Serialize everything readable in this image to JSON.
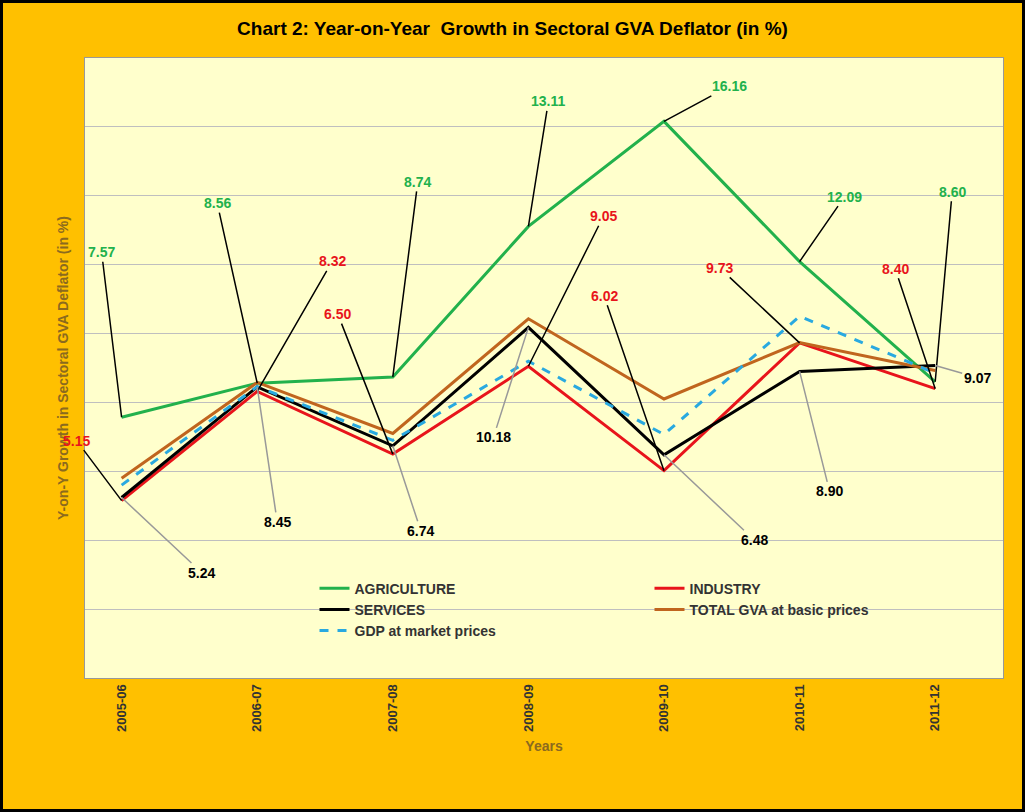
{
  "chart_data": {
    "type": "line",
    "title": "Chart 2: Year-on-Year  Growth in Sectoral GVA Deflator (in %)",
    "x_label": "Years",
    "y_label": "Y-on-Y Growth in Sectoral GVA Deflator (in %)",
    "categories": [
      "2005-06",
      "2006-07",
      "2007-08",
      "2008-09",
      "2009-10",
      "2010-11",
      "2011-12"
    ],
    "series": [
      {
        "name": "AGRICULTURE",
        "color": "#22B14C",
        "line_style": "solid",
        "values": [
          7.57,
          8.56,
          8.74,
          13.11,
          16.16,
          12.09,
          8.6
        ],
        "value_labels": [
          "7.57",
          "8.56",
          "8.74",
          "13.11",
          "16.16",
          "12.09",
          "8.60"
        ]
      },
      {
        "name": "INDUSTRY",
        "color": "#E8141B",
        "line_style": "solid",
        "values": [
          5.15,
          8.32,
          6.5,
          9.05,
          6.02,
          9.73,
          8.4
        ],
        "value_labels": [
          "5.15",
          "8.32",
          "6.50",
          "9.05",
          "6.02",
          "9.73",
          "8.40"
        ]
      },
      {
        "name": "SERVICES",
        "color": "#000000",
        "line_style": "solid",
        "values": [
          5.24,
          8.45,
          6.74,
          10.18,
          6.48,
          8.9,
          9.07
        ],
        "value_labels": [
          "5.24",
          "8.45",
          "6.74",
          "10.18",
          "6.48",
          "8.90",
          "9.07"
        ]
      },
      {
        "name": "TOTAL GVA at basic prices",
        "color": "#C0651E",
        "line_style": "solid",
        "values": [
          5.8,
          8.58,
          7.1,
          10.43,
          8.1,
          9.74,
          8.93
        ]
      },
      {
        "name": "GDP at market prices",
        "color": "#29A9E0",
        "line_style": "dash",
        "values": [
          5.6,
          8.46,
          6.9,
          9.2,
          7.07,
          10.5,
          8.85
        ]
      }
    ],
    "ylim": [
      0,
      18
    ],
    "yticks": [
      0,
      2,
      4,
      6,
      8,
      10,
      12,
      14,
      16,
      18
    ],
    "grid": true,
    "legend": "lower center",
    "data_labels": true,
    "tick_labels": "x"
  }
}
